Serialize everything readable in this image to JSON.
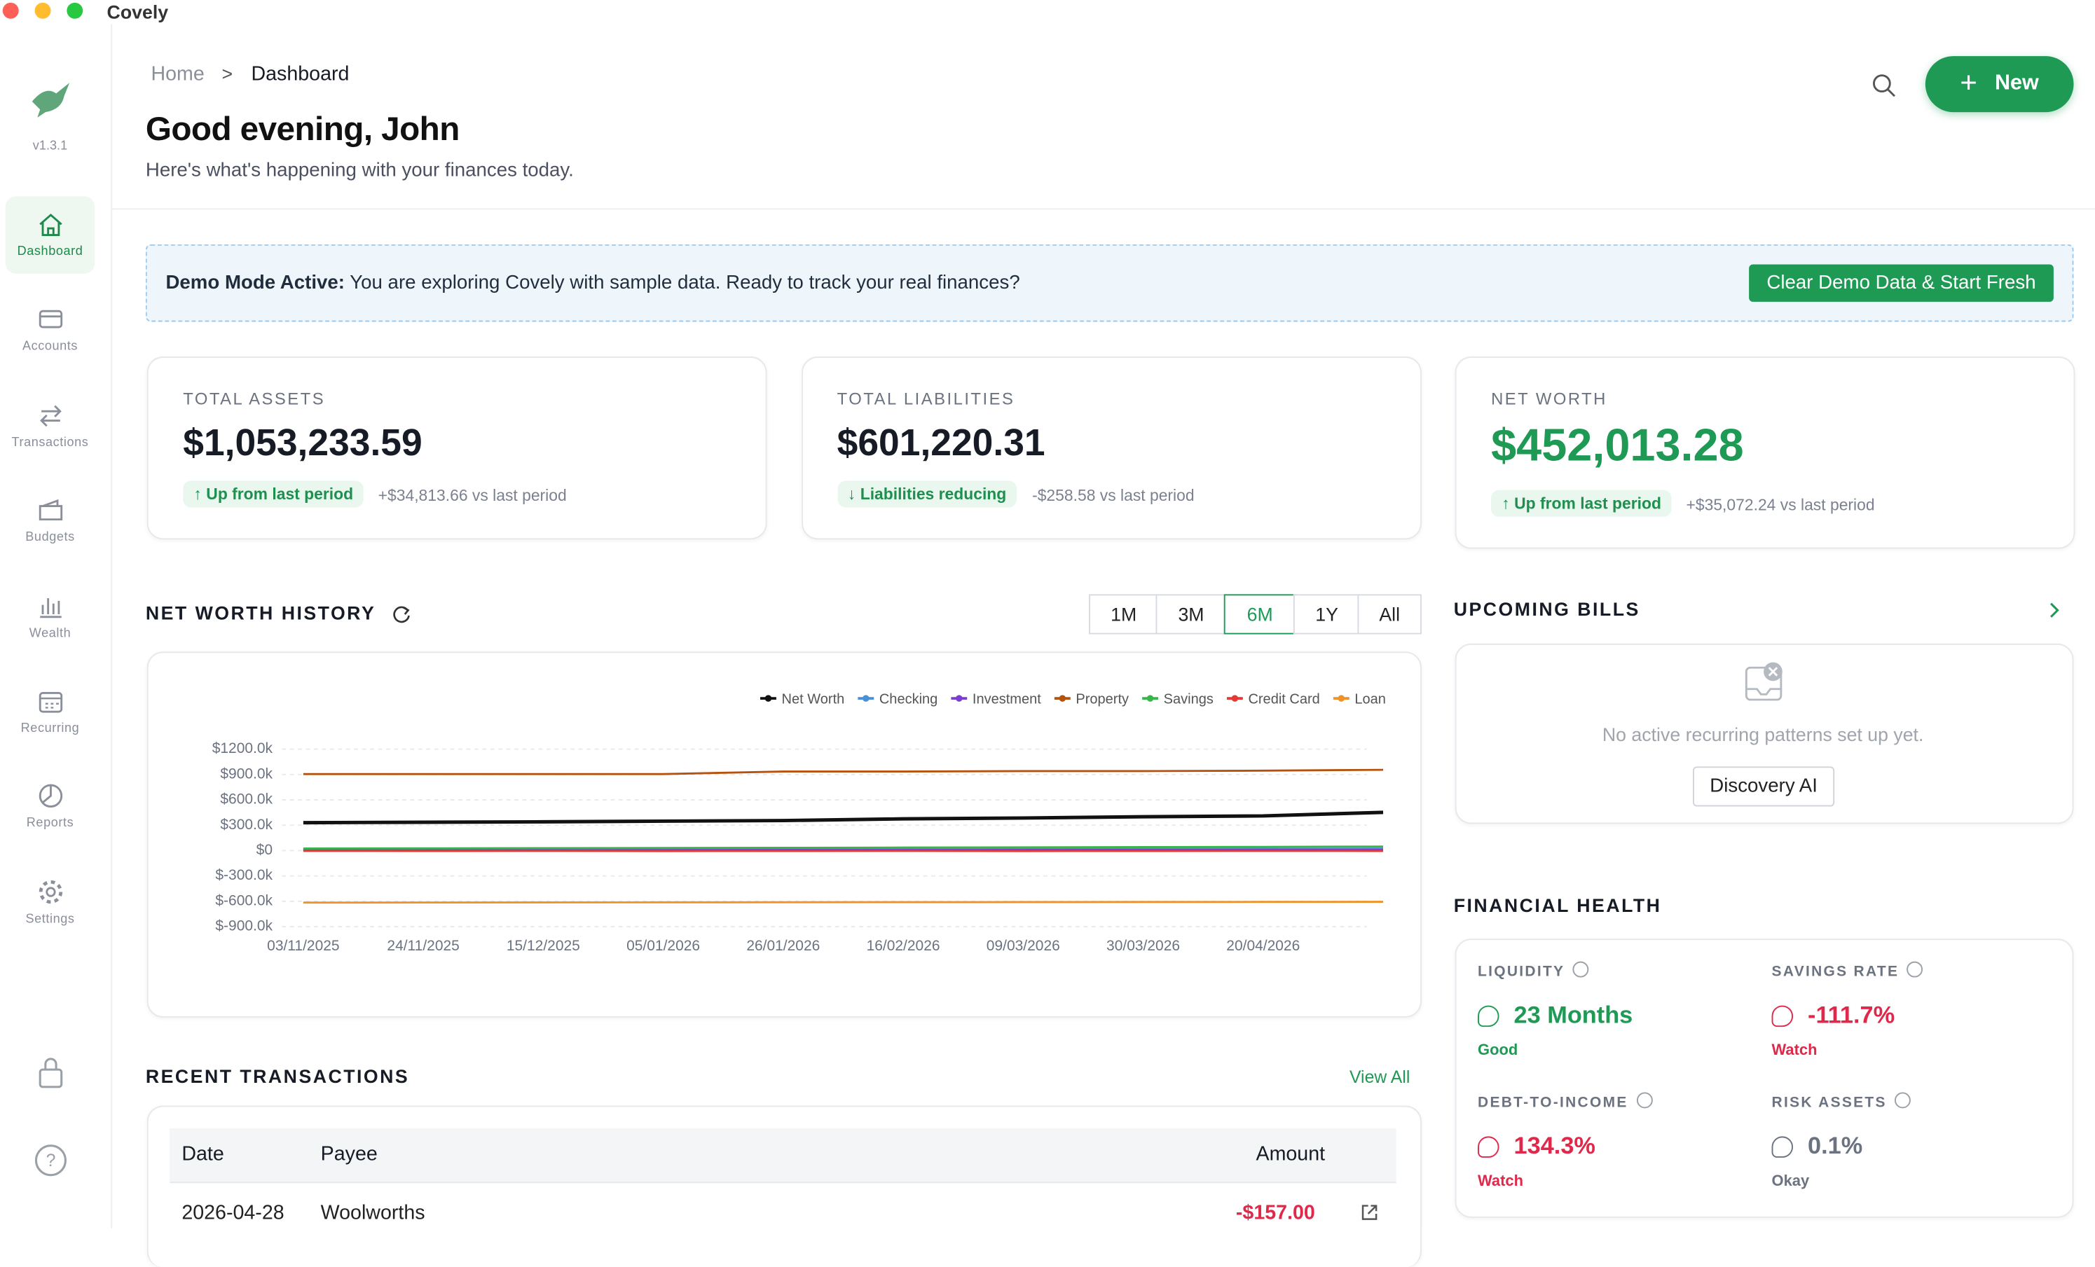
{
  "app": {
    "name": "Covely",
    "version": "v1.3.1"
  },
  "sidebar": {
    "items": [
      "Dashboard",
      "Accounts",
      "Transactions",
      "Budgets",
      "Wealth",
      "Recurring",
      "Reports",
      "Settings"
    ],
    "active": "Dashboard"
  },
  "header": {
    "breadcrumb": [
      "Home",
      ">",
      "Dashboard"
    ],
    "title": "Good evening, John",
    "subtitle": "Here's what's happening with your finances today.",
    "new_button": "New"
  },
  "demo_banner": {
    "label": "Demo Mode Active:",
    "text": "You are exploring Covely with sample data. Ready to track your real finances?",
    "button": "Clear Demo Data & Start Fresh"
  },
  "cards": [
    {
      "label": "TOTAL ASSETS",
      "value": "$1,053,233.59",
      "badge": "↑ Up from last period",
      "delta": "+$34,813.66 vs last period"
    },
    {
      "label": "TOTAL LIABILITIES",
      "value": "$601,220.31",
      "badge": "↓ Liabilities reducing",
      "delta": "-$258.58 vs last period"
    },
    {
      "label": "NET WORTH",
      "value": "$452,013.28",
      "badge": "↑ Up from last period",
      "delta": "+$35,072.24 vs last period"
    }
  ],
  "chart_controls": {
    "ranges": [
      "1M",
      "3M",
      "6M",
      "1Y",
      "All"
    ],
    "active": "6M"
  },
  "chart_data": {
    "type": "line",
    "title": "NET WORTH HISTORY",
    "categories": [
      "03/11/2025",
      "24/11/2025",
      "15/12/2025",
      "05/01/2026",
      "26/01/2026",
      "16/02/2026",
      "09/03/2026",
      "30/03/2026",
      "20/04/2026",
      null
    ],
    "series": [
      {
        "name": "Net Worth",
        "color": "#111111",
        "values": [
          330,
          335,
          340,
          348,
          355,
          375,
          385,
          400,
          410,
          452
        ]
      },
      {
        "name": "Checking",
        "color": "#4a90d9",
        "values": [
          15,
          16,
          14,
          18,
          17,
          20,
          19,
          22,
          21,
          24
        ]
      },
      {
        "name": "Investment",
        "color": "#7b3fd0",
        "values": [
          5,
          5,
          6,
          6,
          7,
          7,
          8,
          8,
          9,
          9
        ]
      },
      {
        "name": "Property",
        "color": "#b5530e",
        "values": [
          905,
          905,
          905,
          905,
          935,
          935,
          940,
          940,
          945,
          955
        ]
      },
      {
        "name": "Savings",
        "color": "#3bb54a",
        "values": [
          25,
          27,
          29,
          31,
          33,
          36,
          38,
          41,
          44,
          48
        ]
      },
      {
        "name": "Credit Card",
        "color": "#e53935",
        "values": [
          -4,
          -5,
          -4,
          -6,
          -5,
          -4,
          -6,
          -5,
          -4,
          -5
        ]
      },
      {
        "name": "Loan",
        "color": "#f0922a",
        "values": [
          -615,
          -614,
          -613,
          -612,
          -611,
          -610,
          -609,
          -608,
          -607,
          -606
        ]
      }
    ],
    "ylim": [
      -900,
      1200
    ],
    "yticks": [
      {
        "value": -900,
        "label": "$-900.0k"
      },
      {
        "value": -600,
        "label": "$-600.0k"
      },
      {
        "value": -300,
        "label": "$-300.0k"
      },
      {
        "value": 0,
        "label": "$0"
      },
      {
        "value": 300,
        "label": "$300.0k"
      },
      {
        "value": 600,
        "label": "$600.0k"
      },
      {
        "value": 900,
        "label": "$900.0k"
      },
      {
        "value": 1200,
        "label": "$1200.0k"
      }
    ],
    "grid": true,
    "legend": "top-right"
  },
  "bills": {
    "title": "UPCOMING BILLS",
    "empty": "No active recurring patterns set up yet.",
    "button": "Discovery AI"
  },
  "health": {
    "title": "FINANCIAL HEALTH",
    "items": [
      {
        "label": "LIQUIDITY",
        "value": "23 Months",
        "status": "Good"
      },
      {
        "label": "SAVINGS RATE",
        "value": "-111.7%",
        "status": "Watch"
      },
      {
        "label": "DEBT-TO-INCOME",
        "value": "134.3%",
        "status": "Watch"
      },
      {
        "label": "RISK ASSETS",
        "value": "0.1%",
        "status": "Okay"
      }
    ]
  },
  "transactions": {
    "title": "RECENT TRANSACTIONS",
    "view_all": "View All",
    "columns": [
      "Date",
      "Payee",
      "Amount"
    ],
    "rows": [
      [
        "2026-04-28",
        "Woolworths",
        "-$157.00"
      ]
    ]
  }
}
